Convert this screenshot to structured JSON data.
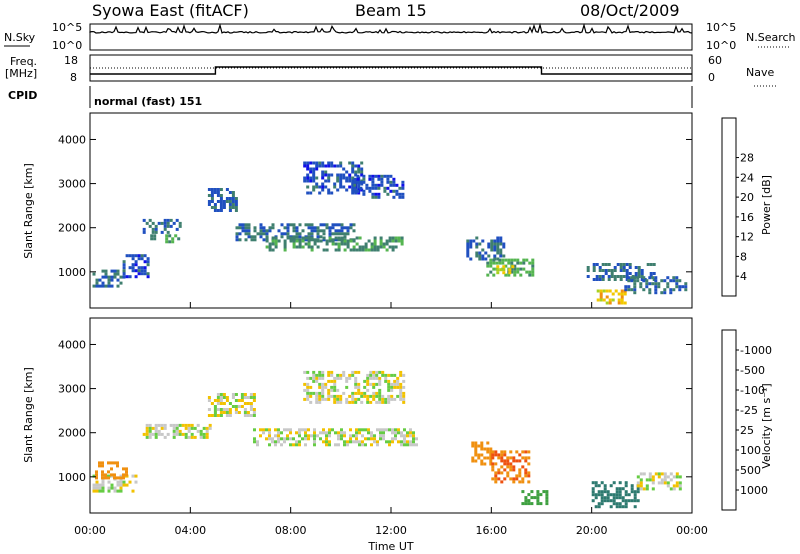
{
  "header": {
    "left_title": "Syowa East (fitACF)",
    "center_title": "Beam 15",
    "right_title": "08/Oct/2009"
  },
  "colors": {
    "background": "#ffffff",
    "axis": "#000000"
  },
  "top_panels": {
    "nsky": {
      "left_label": "N.Sky",
      "right_label": "N.Search",
      "y_ticks_left": [
        "10^5",
        "10^0"
      ],
      "y_ticks_right": [
        "10^5",
        "10^0"
      ]
    },
    "freq": {
      "left_label_1": "Freq.",
      "left_label_2": "[MHz]",
      "right_label": "Nave",
      "y_ticks_left": [
        "18",
        "8"
      ],
      "y_ticks_right": [
        "60",
        "0"
      ]
    },
    "cpid_label": "CPID",
    "cpid_value": "normal (fast) 151"
  },
  "chart_data": [
    {
      "type": "heatmap",
      "title": "",
      "ylabel": "Slant Range [km]",
      "xlabel": "",
      "x_range_hours": [
        0,
        24
      ],
      "ylim": [
        180,
        4600
      ],
      "y_ticks": [
        1000,
        2000,
        3000,
        4000
      ],
      "y_tick_labels": [
        "1000",
        "2000",
        "3000",
        "4000"
      ],
      "colorbar": {
        "label": "Power [dB]",
        "tick_labels": [
          "4",
          "8",
          "12",
          "16",
          "20",
          "24",
          "28"
        ],
        "colors": [
          "#1010e8",
          "#2050c0",
          "#3f7f6f",
          "#55b550",
          "#a8d020",
          "#f2c800",
          "#f09010",
          "#ee5010",
          "#e00000"
        ]
      },
      "regions": [
        {
          "t0": 0.1,
          "t1": 1.3,
          "r0": 650,
          "r1": 1050,
          "value": 8
        },
        {
          "t0": 1.3,
          "t1": 2.3,
          "r0": 900,
          "r1": 1400,
          "value": 6
        },
        {
          "t0": 2.1,
          "t1": 3.6,
          "r0": 1900,
          "r1": 2200,
          "value": 8
        },
        {
          "t0": 2.4,
          "t1": 3.5,
          "r0": 1700,
          "r1": 1850,
          "value": 13
        },
        {
          "t0": 4.7,
          "t1": 5.8,
          "r0": 2400,
          "r1": 2900,
          "value": 7
        },
        {
          "t0": 5.8,
          "t1": 10.5,
          "r0": 1700,
          "r1": 2100,
          "value": 8
        },
        {
          "t0": 7.0,
          "t1": 12.5,
          "r0": 1500,
          "r1": 1800,
          "value": 11
        },
        {
          "t0": 8.5,
          "t1": 10.8,
          "r0": 2800,
          "r1": 3500,
          "value": 6
        },
        {
          "t0": 10.5,
          "t1": 12.5,
          "r0": 2700,
          "r1": 3200,
          "value": 6
        },
        {
          "t0": 15.0,
          "t1": 16.5,
          "r0": 1300,
          "r1": 1800,
          "value": 8
        },
        {
          "t0": 15.8,
          "t1": 17.6,
          "r0": 900,
          "r1": 1300,
          "value": 13
        },
        {
          "t0": 16.2,
          "t1": 17.0,
          "r0": 1000,
          "r1": 1150,
          "value": 20
        },
        {
          "t0": 19.8,
          "t1": 22.5,
          "r0": 800,
          "r1": 1200,
          "value": 8
        },
        {
          "t0": 20.2,
          "t1": 21.3,
          "r0": 300,
          "r1": 600,
          "value": 22
        },
        {
          "t0": 21.3,
          "t1": 23.8,
          "r0": 500,
          "r1": 900,
          "value": 8
        }
      ]
    },
    {
      "type": "heatmap",
      "title": "",
      "ylabel": "Slant Range [km]",
      "xlabel": "Time UT",
      "x_range_hours": [
        0,
        24
      ],
      "ylim": [
        180,
        4600
      ],
      "x_tick_labels": [
        "00:00",
        "04:00",
        "08:00",
        "12:00",
        "16:00",
        "20:00",
        "00:00"
      ],
      "y_ticks": [
        1000,
        2000,
        3000,
        4000
      ],
      "y_tick_labels": [
        "1000",
        "2000",
        "3000",
        "4000"
      ],
      "colorbar": {
        "label": "Velocity [m s⁻¹]",
        "tick_labels": [
          "1000",
          "500",
          "100",
          "25",
          "-25",
          "-100",
          "-500",
          "-1000"
        ],
        "colors": [
          "#2040c0",
          "#2e7a70",
          "#3ea040",
          "#66cc44",
          "#c8c8c8",
          "#f2c200",
          "#f09010",
          "#ee5010",
          "#e00000"
        ]
      },
      "regions": [
        {
          "t0": 0.1,
          "t1": 1.8,
          "r0": 700,
          "r1": 1050,
          "value": 0
        },
        {
          "t0": 0.2,
          "t1": 1.4,
          "r0": 950,
          "r1": 1350,
          "value": -150
        },
        {
          "t0": 2.1,
          "t1": 4.8,
          "r0": 1900,
          "r1": 2200,
          "value": 0
        },
        {
          "t0": 4.7,
          "t1": 6.5,
          "r0": 2400,
          "r1": 2900,
          "value": 0
        },
        {
          "t0": 6.5,
          "t1": 13.0,
          "r0": 1700,
          "r1": 2100,
          "value": 0
        },
        {
          "t0": 8.5,
          "t1": 12.5,
          "r0": 2700,
          "r1": 3400,
          "value": 0
        },
        {
          "t0": 15.2,
          "t1": 16.0,
          "r0": 1300,
          "r1": 1800,
          "value": -150
        },
        {
          "t0": 16.0,
          "t1": 17.5,
          "r0": 900,
          "r1": 1600,
          "value": -300
        },
        {
          "t0": 17.2,
          "t1": 18.2,
          "r0": 400,
          "r1": 700,
          "value": 200
        },
        {
          "t0": 20.0,
          "t1": 21.8,
          "r0": 300,
          "r1": 900,
          "value": 400
        },
        {
          "t0": 21.8,
          "t1": 23.5,
          "r0": 700,
          "r1": 1100,
          "value": 0
        }
      ]
    }
  ]
}
